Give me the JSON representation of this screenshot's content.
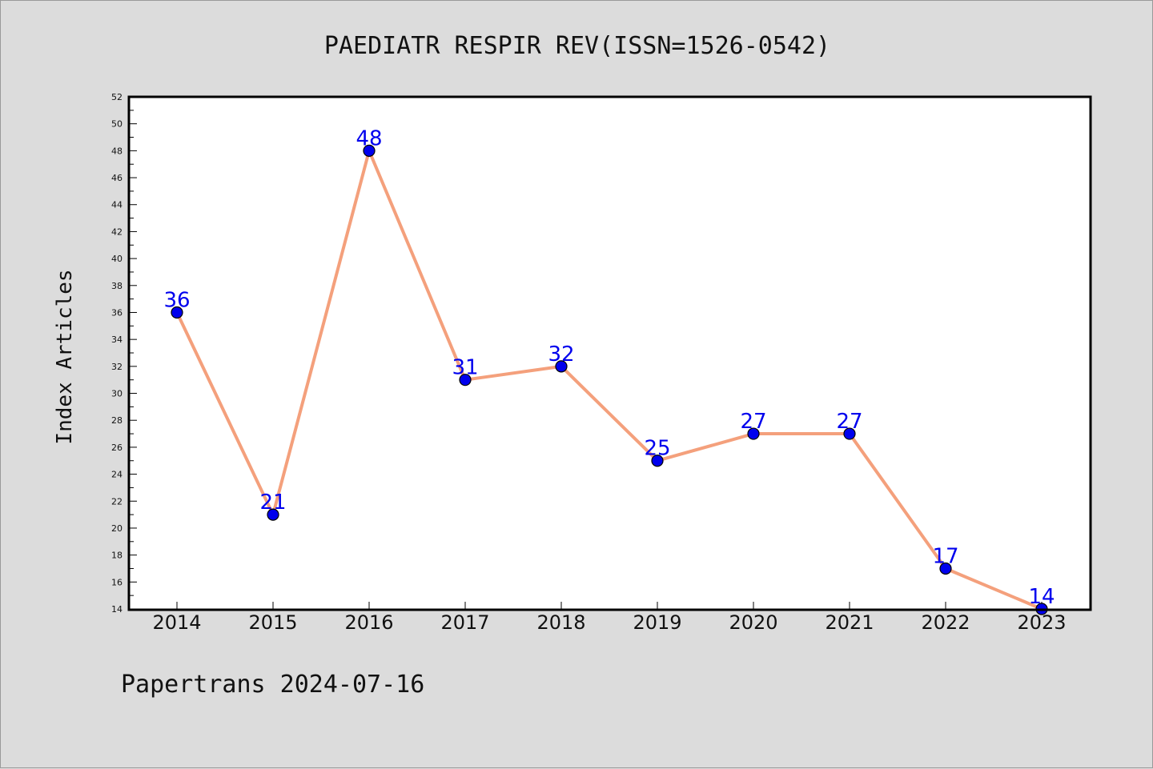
{
  "chart_data": {
    "type": "line",
    "title": "PAEDIATR RESPIR REV(ISSN=1526-0542)",
    "ylabel": "Index Articles",
    "xlabel": "",
    "footer": "Papertrans 2024-07-16",
    "x": [
      "2014",
      "2015",
      "2016",
      "2017",
      "2018",
      "2019",
      "2020",
      "2021",
      "2022",
      "2023"
    ],
    "series": [
      {
        "values": [
          36,
          21,
          48,
          31,
          32,
          25,
          27,
          27,
          17,
          14
        ],
        "data_labels": [
          "36",
          "21",
          "48",
          "31",
          "32",
          "25",
          "27",
          "27",
          "17",
          "14"
        ]
      }
    ],
    "ylim": [
      14,
      52
    ],
    "yticks": [
      "14",
      "16",
      "18",
      "20",
      "22",
      "24",
      "26",
      "28",
      "30",
      "32",
      "34",
      "36",
      "38",
      "40",
      "42",
      "44",
      "46",
      "48",
      "50",
      "52"
    ],
    "grid": false,
    "legend": "none",
    "colors": {
      "line": "#f4a07c",
      "marker": "#0000ee",
      "data_label": "#0000ee",
      "plot_background": "#ffffff",
      "page_background": "#dcdcdc"
    }
  }
}
